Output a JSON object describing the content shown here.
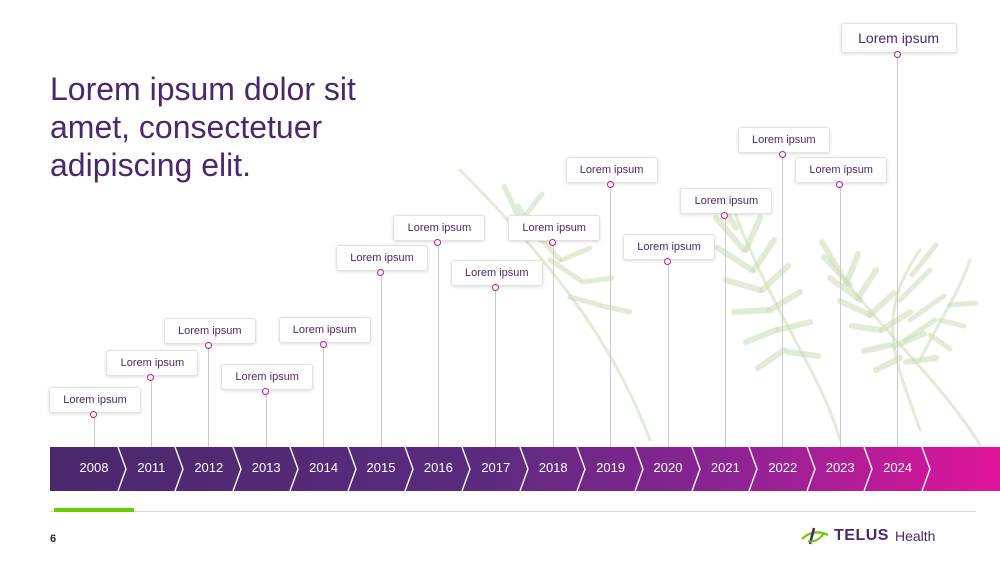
{
  "title": "Lorem ipsum dolor sit amet, consectetuer adipiscing elit.",
  "page_number": "6",
  "logo": {
    "word": "TELUS",
    "suffix": "Health",
    "icon": "telus-globe-icon"
  },
  "colors": {
    "purple": "#4b286d",
    "magenta": "#e0149b",
    "green": "#66cc00"
  },
  "timeline": {
    "years": [
      "2008",
      "2011",
      "2012",
      "2013",
      "2014",
      "2015",
      "2016",
      "2017",
      "2018",
      "2019",
      "2020",
      "2021",
      "2022",
      "2023",
      "2024"
    ],
    "labels": [
      "Lorem ipsum",
      "Lorem ipsum",
      "Lorem ipsum",
      "Lorem ipsum",
      "Lorem ipsum",
      "Lorem ipsum",
      "Lorem ipsum",
      "Lorem ipsum",
      "Lorem ipsum",
      "Lorem ipsum",
      "Lorem ipsum",
      "Lorem ipsum",
      "Lorem ipsum",
      "Lorem ipsum",
      "Lorem ipsum"
    ]
  }
}
